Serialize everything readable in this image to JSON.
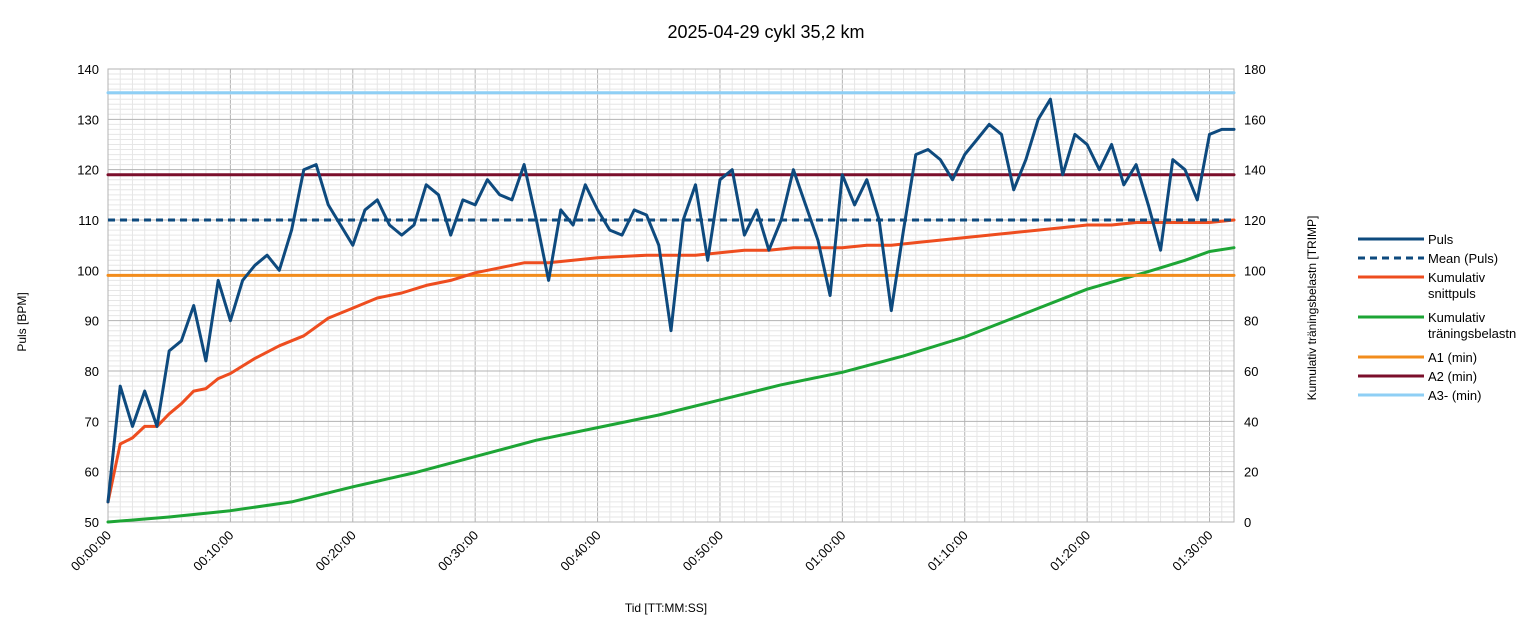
{
  "chart_data": {
    "type": "line",
    "title": "2025-04-29 cykl 35,2 km",
    "xlabel": "Tid [TT:MM:SS]",
    "ylabel": "Puls [BPM]",
    "y2label": "Kumulativ träningsbelastn [TRIMP]",
    "xlim_minutes": [
      0,
      92
    ],
    "ylim": [
      50,
      140
    ],
    "y2lim": [
      0,
      180
    ],
    "grid": true,
    "legend_position": "right",
    "x_ticks": [
      "00:00:00",
      "00:10:00",
      "00:20:00",
      "00:30:00",
      "00:40:00",
      "00:50:00",
      "01:00:00",
      "01:10:00",
      "01:20:00",
      "01:30:00"
    ],
    "y_ticks": [
      "50",
      "60",
      "70",
      "80",
      "90",
      "100",
      "110",
      "120",
      "130",
      "140"
    ],
    "y2_ticks": [
      "0",
      "20",
      "40",
      "60",
      "80",
      "100",
      "120",
      "140",
      "160",
      "180"
    ],
    "series": [
      {
        "name": "Puls",
        "axis": "left",
        "color": "#0e4a7e",
        "style": "solid",
        "x_minutes": [
          0,
          1,
          2,
          3,
          4,
          5,
          6,
          7,
          8,
          9,
          10,
          11,
          12,
          13,
          14,
          15,
          16,
          17,
          18,
          19,
          20,
          21,
          22,
          23,
          24,
          25,
          26,
          27,
          28,
          29,
          30,
          31,
          32,
          33,
          34,
          35,
          36,
          37,
          38,
          39,
          40,
          41,
          42,
          43,
          44,
          45,
          46,
          47,
          48,
          49,
          50,
          51,
          52,
          53,
          54,
          55,
          56,
          57,
          58,
          59,
          60,
          61,
          62,
          63,
          64,
          65,
          66,
          67,
          68,
          69,
          70,
          71,
          72,
          73,
          74,
          75,
          76,
          77,
          78,
          79,
          80,
          81,
          82,
          83,
          84,
          85,
          86,
          87,
          88,
          89,
          90,
          91,
          92
        ],
        "values": [
          54,
          77,
          69,
          76,
          69,
          84,
          86,
          93,
          82,
          98,
          90,
          98,
          101,
          103,
          100,
          108,
          120,
          121,
          113,
          109,
          105,
          112,
          114,
          109,
          107,
          109,
          117,
          115,
          107,
          114,
          113,
          118,
          115,
          114,
          121,
          110,
          98,
          112,
          109,
          117,
          112,
          108,
          107,
          112,
          111,
          105,
          88,
          110,
          117,
          102,
          118,
          120,
          107,
          112,
          104,
          110,
          120,
          113,
          106,
          95,
          119,
          113,
          118,
          110,
          92,
          108,
          123,
          124,
          122,
          118,
          123,
          126,
          129,
          127,
          116,
          122,
          130,
          134,
          119,
          127,
          125,
          120,
          125,
          117,
          121,
          113,
          104,
          122,
          120,
          114,
          127,
          128,
          128
        ]
      },
      {
        "name": "Mean (Puls)",
        "axis": "left",
        "color": "#0e4a7e",
        "style": "dashed",
        "x_minutes": [
          0,
          92
        ],
        "values": [
          110,
          110
        ]
      },
      {
        "name": "Kumulativ snittpuls",
        "axis": "left",
        "color": "#ee4d1f",
        "style": "solid",
        "x_minutes": [
          0,
          1,
          2,
          3,
          4,
          5,
          6,
          7,
          8,
          9,
          10,
          12,
          14,
          16,
          18,
          20,
          22,
          24,
          26,
          28,
          30,
          32,
          34,
          36,
          38,
          40,
          44,
          46,
          48,
          50,
          52,
          54,
          56,
          58,
          60,
          62,
          64,
          66,
          68,
          70,
          72,
          74,
          76,
          78,
          80,
          82,
          84,
          86,
          88,
          90,
          92
        ],
        "values": [
          54,
          65.5,
          66.7,
          69,
          69,
          71.5,
          73.5,
          76,
          76.5,
          78.5,
          79.5,
          82.5,
          85,
          87,
          90.5,
          92.5,
          94.5,
          95.5,
          97,
          98,
          99.5,
          100.5,
          101.5,
          101.5,
          102,
          102.5,
          103,
          103,
          103,
          103.5,
          104,
          104,
          104.5,
          104.5,
          104.5,
          105,
          105,
          105.5,
          106,
          106.5,
          107,
          107.5,
          108,
          108.5,
          109,
          109,
          109.5,
          109.5,
          109.5,
          109.5,
          110
        ]
      },
      {
        "name": "Kumulativ träningsbelastn",
        "axis": "right",
        "color": "#1da535",
        "style": "solid",
        "x_minutes": [
          0,
          5,
          10,
          15,
          20,
          25,
          30,
          35,
          40,
          45,
          50,
          55,
          60,
          65,
          70,
          75,
          80,
          85,
          88,
          90,
          92
        ],
        "values": [
          0,
          2,
          4.5,
          8,
          14,
          19.5,
          26,
          32.5,
          37.5,
          42.5,
          48.5,
          54.5,
          59.5,
          66,
          73.5,
          83,
          92.5,
          99.5,
          104,
          107.5,
          109
        ]
      },
      {
        "name": "A1 (min)",
        "axis": "left",
        "color": "#f28c1c",
        "style": "solid",
        "x_minutes": [
          0,
          92
        ],
        "values": [
          99,
          99
        ]
      },
      {
        "name": "A2 (min)",
        "axis": "left",
        "color": "#7b0f2b",
        "style": "solid",
        "x_minutes": [
          0,
          92
        ],
        "values": [
          119,
          119
        ]
      },
      {
        "name": "A3- (min)",
        "axis": "left",
        "color": "#8ecff5",
        "style": "solid",
        "x_minutes": [
          0,
          92
        ],
        "values": [
          135.3,
          135.3
        ]
      }
    ],
    "legend": [
      {
        "lines": [
          "Puls"
        ],
        "color": "#0e4a7e",
        "style": "solid"
      },
      {
        "lines": [
          "Mean (Puls)"
        ],
        "color": "#0e4a7e",
        "style": "dashed"
      },
      {
        "lines": [
          "Kumulativ",
          "snittpuls"
        ],
        "color": "#ee4d1f",
        "style": "solid"
      },
      {
        "lines": [
          "Kumulativ",
          "träningsbelastn"
        ],
        "color": "#1da535",
        "style": "solid"
      },
      {
        "lines": [
          "A1 (min)"
        ],
        "color": "#f28c1c",
        "style": "solid"
      },
      {
        "lines": [
          "A2 (min)"
        ],
        "color": "#7b0f2b",
        "style": "solid"
      },
      {
        "lines": [
          "A3- (min)"
        ],
        "color": "#8ecff5",
        "style": "solid"
      }
    ]
  }
}
